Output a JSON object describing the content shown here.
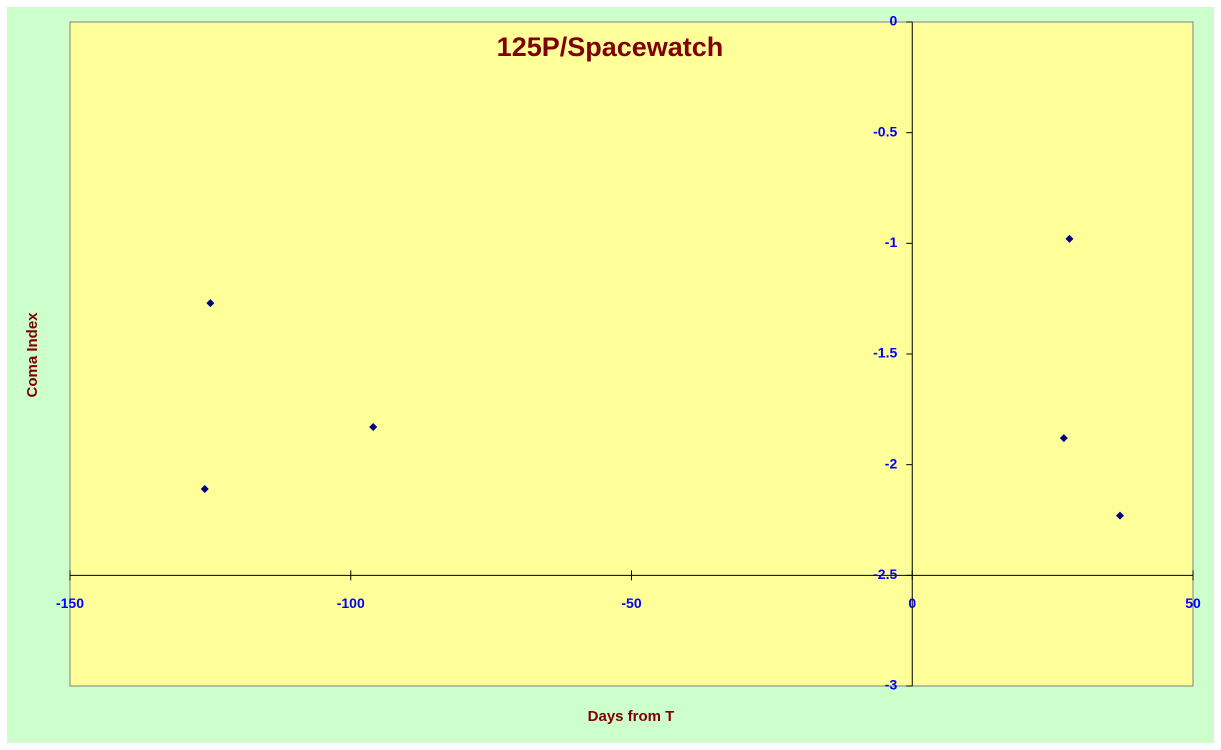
{
  "chart_data": {
    "type": "scatter",
    "title": "125P/Spacewatch",
    "x_label": "Days from T",
    "y_label": "Coma Index",
    "series": [
      {
        "color": "#000080",
        "x": [
          -125,
          -126,
          -96,
          28,
          27,
          37
        ],
        "values": [
          -1.27,
          -2.11,
          -1.83,
          -0.98,
          -1.88,
          -2.23
        ]
      }
    ],
    "xlim": [
      -150,
      50
    ],
    "xticks": [
      -150,
      -100,
      -50,
      0,
      50
    ],
    "ylim": [
      -3,
      0
    ],
    "yticks": [
      0,
      -0.5,
      -1,
      -1.5,
      -2,
      -2.5,
      -3
    ],
    "x_axis_crosses_y": -2.5,
    "y_axis_crosses_x": 0,
    "plot_color": "#ffff99",
    "background_color": "#ccffcc",
    "grid": false
  }
}
